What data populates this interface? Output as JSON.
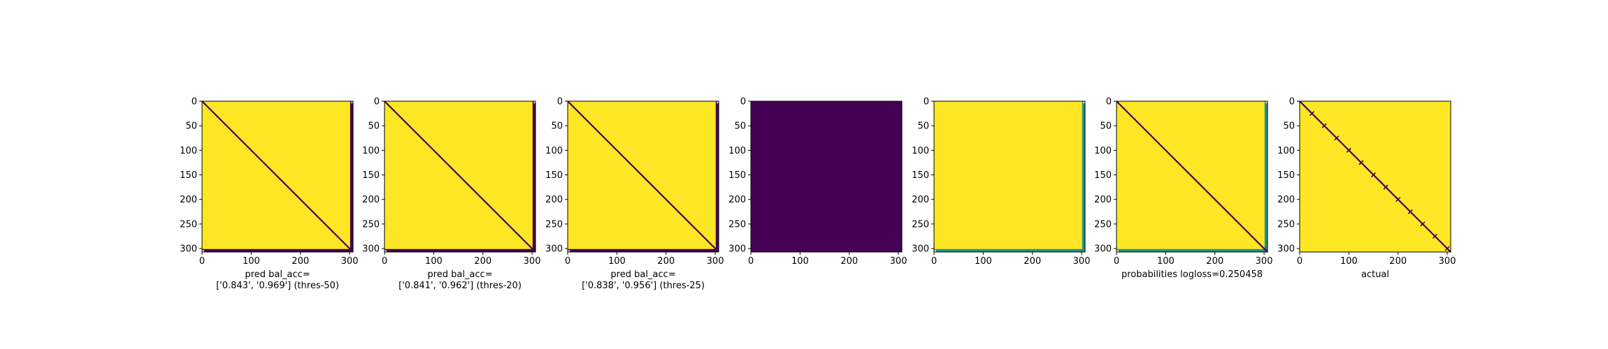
{
  "colors": {
    "yellow": "#fde725",
    "purple": "#440154",
    "teal": "#21918c",
    "white": "#ffffff"
  },
  "chart_data": [
    {
      "type": "heatmap",
      "description": "confusion-like matrix, mostly high values, dark diagonal and dark bottom row / right column",
      "xticks": [
        "0",
        "100",
        "200",
        "300"
      ],
      "yticks": [
        "0",
        "50",
        "100",
        "150",
        "200",
        "250",
        "300"
      ],
      "xlim": [
        0,
        307
      ],
      "ylim": [
        307,
        0
      ],
      "pattern": {
        "base": "yellow",
        "diagonal": "purple",
        "bottom_row": "purple",
        "right_column": "purple"
      },
      "title": "",
      "xlabel": "pred bal_acc=\n['0.843', '0.969'] (thres-50)"
    },
    {
      "type": "heatmap",
      "xticks": [
        "0",
        "100",
        "200",
        "300"
      ],
      "yticks": [
        "0",
        "50",
        "100",
        "150",
        "200",
        "250",
        "300"
      ],
      "xlim": [
        0,
        307
      ],
      "ylim": [
        307,
        0
      ],
      "pattern": {
        "base": "yellow",
        "diagonal": "purple",
        "bottom_row": "purple",
        "right_column": "purple"
      },
      "title": "",
      "xlabel": "pred bal_acc=\n['0.841', '0.962'] (thres-20)"
    },
    {
      "type": "heatmap",
      "xticks": [
        "0",
        "100",
        "200",
        "300"
      ],
      "yticks": [
        "0",
        "50",
        "100",
        "150",
        "200",
        "250",
        "300"
      ],
      "xlim": [
        0,
        307
      ],
      "ylim": [
        307,
        0
      ],
      "pattern": {
        "base": "yellow",
        "diagonal": "purple",
        "bottom_row": "purple",
        "right_column": "purple"
      },
      "title": "",
      "xlabel": "pred bal_acc=\n['0.838', '0.956'] (thres-25)"
    },
    {
      "type": "heatmap",
      "xticks": [
        "0",
        "100",
        "200",
        "300"
      ],
      "yticks": [
        "0",
        "50",
        "100",
        "150",
        "200",
        "250",
        "300"
      ],
      "xlim": [
        0,
        307
      ],
      "ylim": [
        307,
        0
      ],
      "pattern": {
        "base": "purple"
      },
      "title": "",
      "xlabel": ""
    },
    {
      "type": "heatmap",
      "xticks": [
        "0",
        "100",
        "200",
        "300"
      ],
      "yticks": [
        "0",
        "50",
        "100",
        "150",
        "200",
        "250",
        "300"
      ],
      "xlim": [
        0,
        307
      ],
      "ylim": [
        307,
        0
      ],
      "pattern": {
        "base": "yellow",
        "bottom_row": "teal",
        "right_column": "teal"
      },
      "title": "",
      "xlabel": ""
    },
    {
      "type": "heatmap",
      "xticks": [
        "0",
        "100",
        "200",
        "300"
      ],
      "yticks": [
        "0",
        "50",
        "100",
        "150",
        "200",
        "250",
        "300"
      ],
      "xlim": [
        0,
        307
      ],
      "ylim": [
        307,
        0
      ],
      "pattern": {
        "base": "yellow",
        "diagonal": "purple",
        "bottom_row": "teal",
        "right_column": "teal"
      },
      "title": "",
      "xlabel": "probabilities logloss=0.250458"
    },
    {
      "type": "heatmap",
      "xticks": [
        "0",
        "100",
        "200",
        "300"
      ],
      "yticks": [
        "0",
        "50",
        "100",
        "150",
        "200",
        "250",
        "300"
      ],
      "xlim": [
        0,
        307
      ],
      "ylim": [
        307,
        0
      ],
      "pattern": {
        "base": "yellow",
        "diagonal": "purple",
        "diagonal_markers": true
      },
      "title": "",
      "xlabel": "actual"
    }
  ]
}
